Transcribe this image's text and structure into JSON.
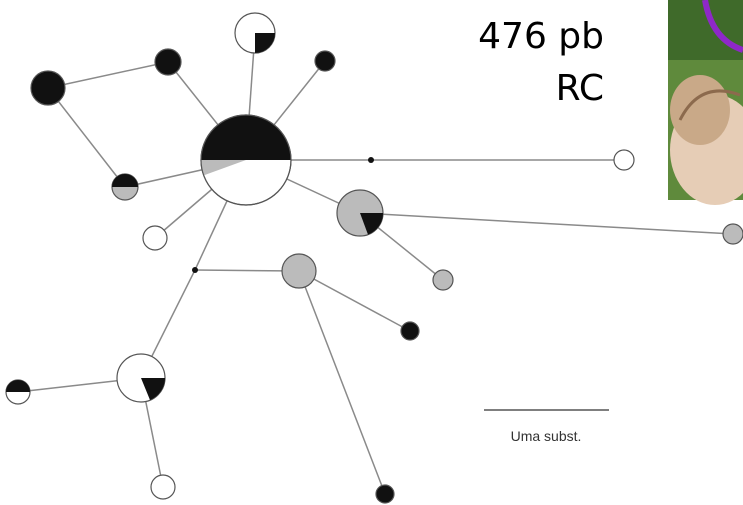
{
  "label": {
    "line1": "476 pb",
    "line2": "RC"
  },
  "scale_bar": {
    "label": "Uma subst."
  }
}
